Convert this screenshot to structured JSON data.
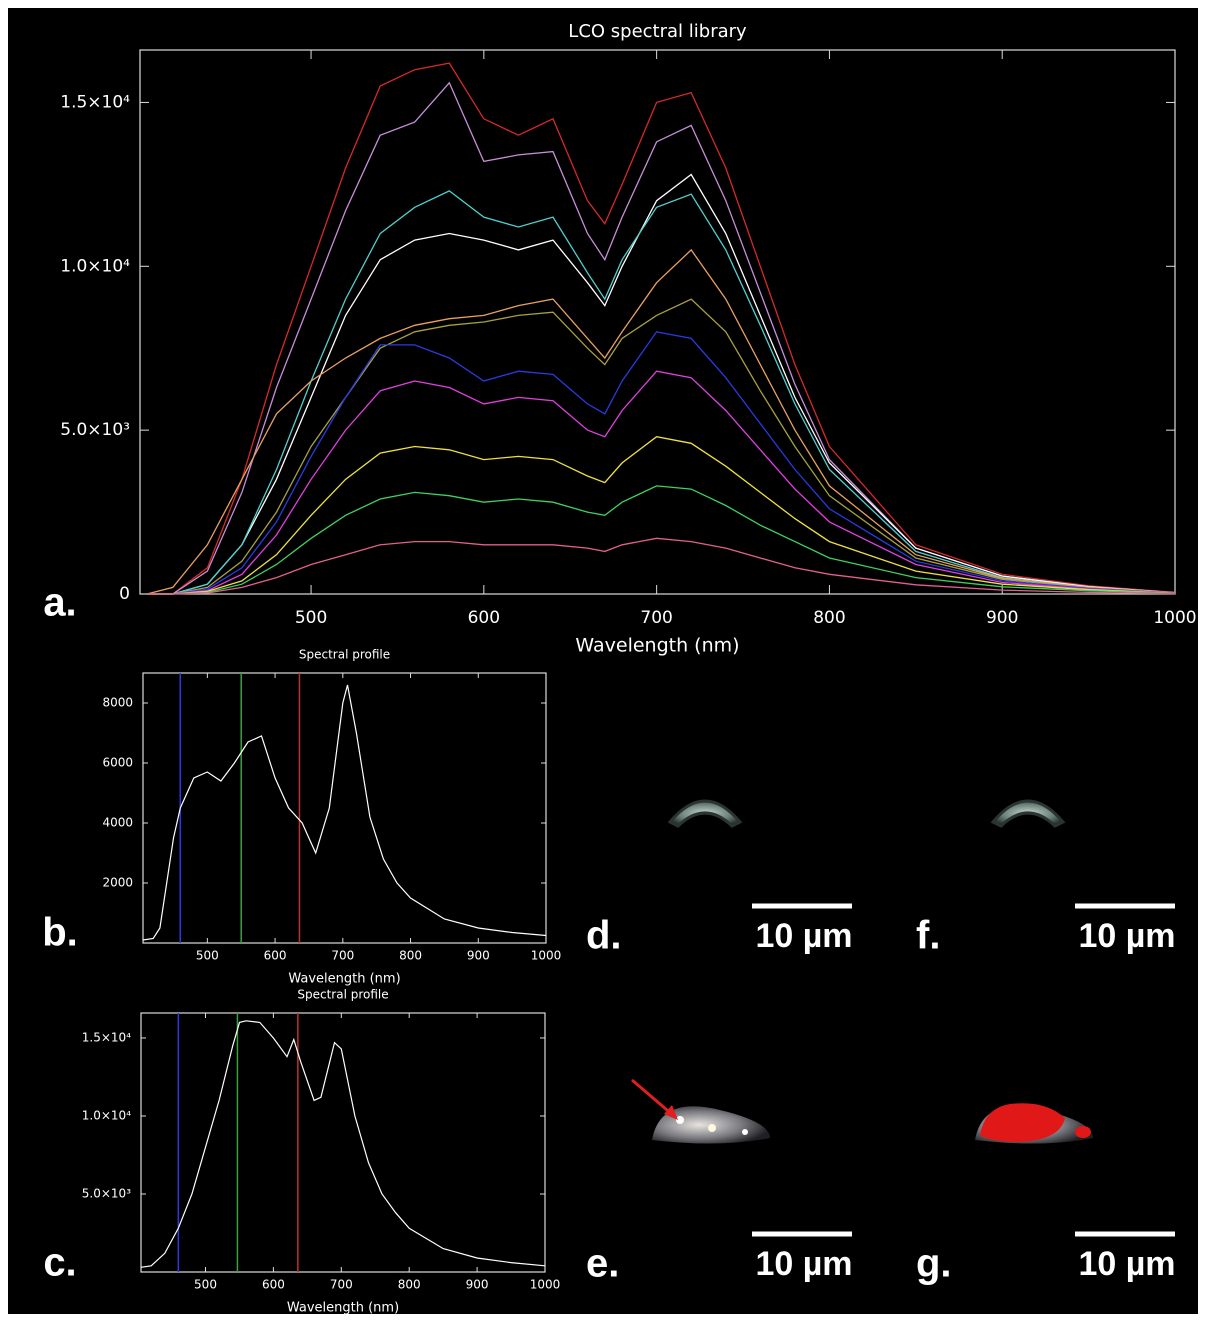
{
  "chart_data": [
    {
      "type": "line",
      "title": "LCO spectral library",
      "panel_label": "a.",
      "x_label": "Wavelength (nm)",
      "xlim": [
        401,
        1000
      ],
      "xticks": [
        500,
        600,
        700,
        800,
        900,
        1000
      ],
      "ylim": [
        0,
        16600
      ],
      "yticks": [
        0,
        {
          "value": 5000,
          "label": "5.0×10³"
        },
        {
          "value": 10000,
          "label": "1.0×10⁴"
        },
        {
          "value": 15000,
          "label": "1.5×10⁴"
        }
      ],
      "x": [
        405,
        420,
        440,
        460,
        480,
        500,
        520,
        540,
        560,
        580,
        600,
        620,
        640,
        660,
        670,
        680,
        700,
        720,
        740,
        760,
        780,
        800,
        850,
        900,
        950,
        1000
      ],
      "series": [
        {
          "color": "#d42a2a",
          "values": [
            0,
            0,
            800,
            3500,
            7000,
            10000,
            13000,
            15500,
            16000,
            16200,
            14500,
            14000,
            14500,
            12000,
            11300,
            12500,
            15000,
            15300,
            13000,
            10000,
            7000,
            4500,
            1500,
            600,
            250,
            50
          ]
        },
        {
          "color": "#c78fd8",
          "values": [
            0,
            0,
            700,
            3100,
            6300,
            9000,
            11700,
            14000,
            14400,
            15600,
            13200,
            13400,
            13500,
            11000,
            10200,
            11500,
            13800,
            14300,
            12000,
            9200,
            6400,
            4100,
            1400,
            550,
            230,
            40
          ]
        },
        {
          "color": "#ffffff",
          "values": [
            0,
            0,
            300,
            1500,
            3500,
            6000,
            8500,
            10200,
            10800,
            11000,
            10800,
            10500,
            10800,
            9500,
            8800,
            10000,
            12000,
            12800,
            11000,
            8500,
            6000,
            4000,
            1400,
            550,
            220,
            40
          ]
        },
        {
          "color": "#4fd0d0",
          "values": [
            0,
            0,
            300,
            1500,
            3800,
            6500,
            9000,
            11000,
            11800,
            12300,
            11500,
            11200,
            11500,
            9800,
            9000,
            10200,
            11800,
            12200,
            10500,
            8200,
            5800,
            3800,
            1300,
            500,
            200,
            40
          ]
        },
        {
          "color": "#e8a060",
          "values": [
            0,
            200,
            1500,
            3500,
            5500,
            6500,
            7200,
            7800,
            8200,
            8400,
            8500,
            8800,
            9000,
            7800,
            7200,
            8000,
            9500,
            10500,
            9000,
            7000,
            5000,
            3300,
            1200,
            480,
            200,
            40
          ]
        },
        {
          "color": "#a8a040",
          "values": [
            0,
            0,
            200,
            1000,
            2500,
            4500,
            6000,
            7500,
            8000,
            8200,
            8300,
            8500,
            8600,
            7500,
            7000,
            7800,
            8500,
            9000,
            8000,
            6200,
            4500,
            3000,
            1100,
            450,
            180,
            30
          ]
        },
        {
          "color": "#2a3ae0",
          "values": [
            0,
            0,
            150,
            800,
            2200,
            4200,
            6000,
            7600,
            7600,
            7200,
            6500,
            6800,
            6700,
            5800,
            5500,
            6500,
            8000,
            7800,
            6600,
            5200,
            3800,
            2600,
            1000,
            400,
            170,
            30
          ]
        },
        {
          "color": "#e040e0",
          "values": [
            0,
            0,
            100,
            600,
            1800,
            3500,
            5000,
            6200,
            6500,
            6300,
            5800,
            6000,
            5900,
            5000,
            4800,
            5600,
            6800,
            6600,
            5600,
            4400,
            3200,
            2200,
            900,
            350,
            150,
            30
          ]
        },
        {
          "color": "#f0e040",
          "values": [
            0,
            0,
            80,
            400,
            1200,
            2400,
            3500,
            4300,
            4500,
            4400,
            4100,
            4200,
            4100,
            3600,
            3400,
            4000,
            4800,
            4600,
            3900,
            3100,
            2300,
            1600,
            700,
            300,
            130,
            20
          ]
        },
        {
          "color": "#40d060",
          "values": [
            0,
            0,
            50,
            300,
            900,
            1700,
            2400,
            2900,
            3100,
            3000,
            2800,
            2900,
            2800,
            2500,
            2400,
            2800,
            3300,
            3200,
            2700,
            2100,
            1600,
            1100,
            500,
            220,
            100,
            20
          ]
        },
        {
          "color": "#e06090",
          "values": [
            0,
            0,
            30,
            200,
            500,
            900,
            1200,
            1500,
            1600,
            1600,
            1500,
            1500,
            1500,
            1400,
            1300,
            1500,
            1700,
            1600,
            1400,
            1100,
            800,
            600,
            280,
            120,
            50,
            10
          ]
        }
      ]
    },
    {
      "type": "line",
      "title": "Spectral profile",
      "panel_label": "b.",
      "x_label": "Wavelength (nm)",
      "xlim": [
        405,
        1000
      ],
      "xticks": [
        500,
        600,
        700,
        800,
        900,
        1000
      ],
      "ylim": [
        0,
        9000
      ],
      "yticks": [
        2000,
        4000,
        6000,
        8000
      ],
      "vlines": [
        {
          "value": 460,
          "color": "#2a3ae0"
        },
        {
          "value": 550,
          "color": "#3aa040"
        },
        {
          "value": 636,
          "color": "#c03030"
        }
      ],
      "x": [
        405,
        420,
        430,
        440,
        450,
        460,
        480,
        500,
        520,
        540,
        560,
        580,
        600,
        620,
        640,
        650,
        660,
        680,
        700,
        707,
        720,
        740,
        760,
        780,
        800,
        850,
        900,
        950,
        1000
      ],
      "series": [
        {
          "color": "#ffffff",
          "values": [
            100,
            150,
            500,
            2000,
            3500,
            4500,
            5500,
            5700,
            5400,
            6000,
            6700,
            6900,
            5500,
            4500,
            4000,
            3500,
            3000,
            4500,
            8000,
            8600,
            7000,
            4200,
            2800,
            2000,
            1500,
            800,
            500,
            350,
            250
          ]
        }
      ]
    },
    {
      "type": "line",
      "title": "Spectral profile",
      "panel_label": "c.",
      "x_label": "Wavelength (nm)",
      "xlim": [
        405,
        1000
      ],
      "xticks": [
        500,
        600,
        700,
        800,
        900,
        1000
      ],
      "ylim": [
        0,
        16600
      ],
      "yticks": [
        {
          "value": 5000,
          "label": "5.0×10³"
        },
        {
          "value": 10000,
          "label": "1.0×10⁴"
        },
        {
          "value": 15000,
          "label": "1.5×10⁴"
        }
      ],
      "vlines": [
        {
          "value": 460,
          "color": "#2a3ae0"
        },
        {
          "value": 547,
          "color": "#3aa040"
        },
        {
          "value": 636,
          "color": "#c03030"
        }
      ],
      "x": [
        405,
        420,
        440,
        460,
        480,
        500,
        520,
        540,
        550,
        560,
        580,
        600,
        620,
        630,
        640,
        660,
        670,
        690,
        700,
        720,
        740,
        760,
        780,
        800,
        850,
        900,
        950,
        1000
      ],
      "series": [
        {
          "color": "#ffffff",
          "values": [
            300,
            400,
            1200,
            2800,
            5000,
            8000,
            11000,
            14500,
            16000,
            16100,
            16000,
            15000,
            13800,
            14900,
            13500,
            11000,
            11200,
            14700,
            14300,
            10000,
            7000,
            5000,
            3800,
            2800,
            1500,
            900,
            600,
            400
          ]
        }
      ]
    }
  ],
  "panels": [
    {
      "label": "d.",
      "scale_bar": "10 µm"
    },
    {
      "label": "f.",
      "scale_bar": "10 µm"
    },
    {
      "label": "e.",
      "scale_bar": "10 µm"
    },
    {
      "label": "g.",
      "scale_bar": "10 µm"
    }
  ]
}
